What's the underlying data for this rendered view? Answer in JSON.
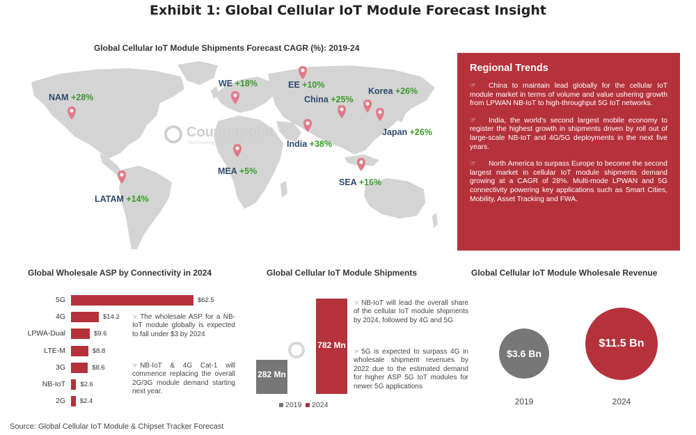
{
  "title": "Exhibit 1: Global Cellular IoT Module Forecast Insight",
  "map": {
    "title": "Global Cellular IoT Module Shipments Forecast CAGR (%): 2019-24",
    "regions": [
      {
        "name": "NAM",
        "value": "+28%"
      },
      {
        "name": "WE",
        "value": "+18%"
      },
      {
        "name": "EE",
        "value": "+10%"
      },
      {
        "name": "China",
        "value": "+25%"
      },
      {
        "name": "Korea",
        "value": "+26%"
      },
      {
        "name": "Japan",
        "value": "+26%"
      },
      {
        "name": "India",
        "value": "+38%"
      },
      {
        "name": "MEA",
        "value": "+5%"
      },
      {
        "name": "SEA",
        "value": "+16%"
      },
      {
        "name": "LATAM",
        "value": "+14%"
      }
    ],
    "watermark": "Counterpoint",
    "watermark_sub": "Technology Market Research"
  },
  "trends": {
    "title": "Regional Trends",
    "items": [
      "China to maintain lead globally for the cellular IoT module market in terms of volume and value ushering growth from LPWAN NB-IoT to high-throughput 5G IoT networks.",
      "India, the world's second largest mobile economy to register the highest growth in shipments driven by roll out of large-scale NB-IoT and 4G/5G deployments in the next five years.",
      "North America to surpass Europe to become the second largest market in cellular IoT module shipments demand growing at a CAGR of 28%. Multi-mode LPWAN and 5G connectivity powering key applications such as Smart Cities, Mobility, Asset Tracking and FWA."
    ]
  },
  "asp": {
    "title": "Global Wholesale ASP by Connectivity in 2024",
    "notes": [
      "The wholesale ASP for a NB-IoT module globally is expected to fall under $3 by 2024",
      "NB-IoT & 4G Cat-1 will commence replacing the overall 2G/3G module demand starting next year."
    ]
  },
  "shipments": {
    "title": "Global Cellular IoT Module Shipments",
    "legend": [
      "2019",
      "2024"
    ],
    "notes": [
      "NB-IoT will lead the overall share of the cellular IoT module shipments by 2024, followed by 4G and 5G",
      "5G is expected to surpass 4G in wholesale shipment revenues by 2022 due to the estimated demand for higher ASP 5G IoT modules for newer 5G applications"
    ]
  },
  "revenue": {
    "title": "Global Cellular IoT Module Wholesale Revenue"
  },
  "source": "Source: Global Cellular IoT Module & Chipset Tracker Forecast",
  "colors": {
    "accent": "#b5323b",
    "grey": "#777777",
    "green": "#3a9a2a",
    "navy": "#2f4a6d"
  },
  "icons": {
    "bullet": "hand-pointing-icon",
    "marker": "map-pin-icon"
  },
  "chart_data": [
    {
      "type": "bar",
      "orientation": "horizontal",
      "title": "Global Wholesale ASP by Connectivity in 2024",
      "categories": [
        "5G",
        "4G",
        "LPWA-Dual",
        "LTE-M",
        "3G",
        "NB-IoT",
        "2G"
      ],
      "values": [
        62.5,
        14.2,
        9.6,
        8.8,
        8.6,
        2.6,
        2.4
      ],
      "labels": [
        "$62.5",
        "$14.2",
        "$9.6",
        "$8.8",
        "$8.6",
        "$2.6",
        "$2.4"
      ],
      "xlim": [
        0,
        62.5
      ]
    },
    {
      "type": "bar",
      "title": "Global Cellular IoT Module Shipments",
      "categories": [
        "2019",
        "2024"
      ],
      "values": [
        282,
        782
      ],
      "labels": [
        "282 Mn",
        "782 Mn"
      ],
      "colors": [
        "#777777",
        "#b5323b"
      ],
      "ylim": [
        0,
        782
      ]
    },
    {
      "type": "bubble",
      "title": "Global Cellular IoT Module Wholesale Revenue",
      "categories": [
        "2019",
        "2024"
      ],
      "values": [
        3.6,
        11.5
      ],
      "labels": [
        "$3.6 Bn",
        "$11.5 Bn"
      ],
      "colors": [
        "#777777",
        "#b5323b"
      ]
    }
  ]
}
